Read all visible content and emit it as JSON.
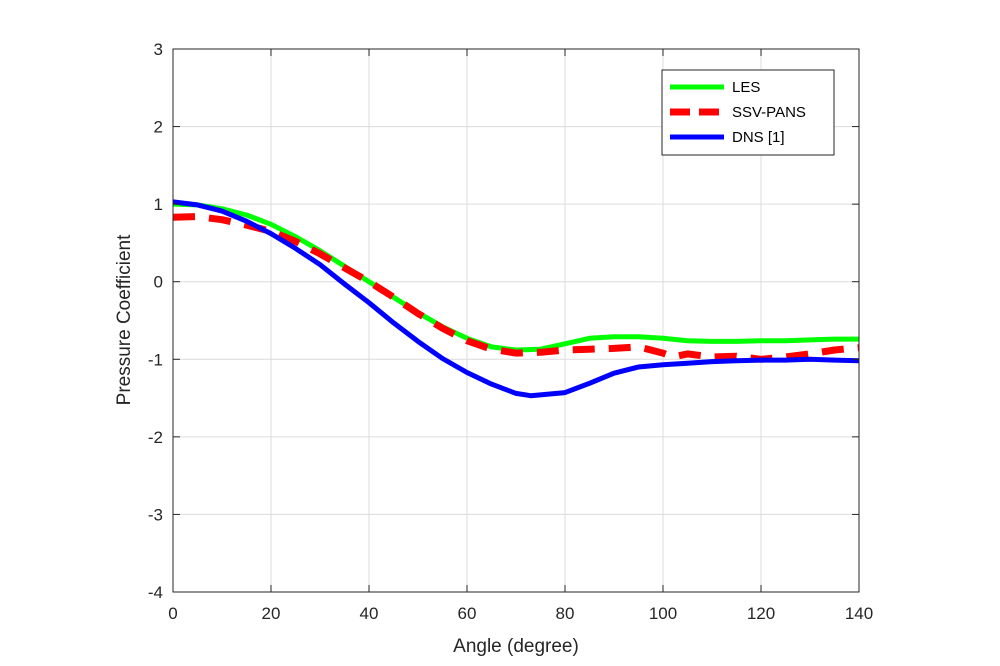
{
  "chart_data": {
    "type": "line",
    "title": "",
    "xlabel": "Angle (degree)",
    "ylabel": "Pressure Coefficient",
    "xlim": [
      0,
      140
    ],
    "ylim": [
      -4,
      3
    ],
    "xticks": [
      0,
      20,
      40,
      60,
      80,
      100,
      120,
      140
    ],
    "yticks": [
      -4,
      -3,
      -2,
      -1,
      0,
      1,
      2,
      3
    ],
    "grid": true,
    "legend_position": "top-right",
    "series": [
      {
        "name": "LES",
        "color": "#00ff00",
        "style": "solid",
        "x": [
          0,
          5,
          10,
          15,
          20,
          25,
          30,
          35,
          40,
          45,
          50,
          55,
          60,
          65,
          70,
          75,
          80,
          85,
          90,
          95,
          100,
          105,
          110,
          115,
          120,
          125,
          130,
          135,
          140
        ],
        "y": [
          1.0,
          0.99,
          0.94,
          0.86,
          0.74,
          0.58,
          0.4,
          0.2,
          0.0,
          -0.2,
          -0.4,
          -0.58,
          -0.73,
          -0.84,
          -0.88,
          -0.87,
          -0.8,
          -0.73,
          -0.71,
          -0.71,
          -0.73,
          -0.76,
          -0.77,
          -0.77,
          -0.76,
          -0.76,
          -0.75,
          -0.74,
          -0.74
        ]
      },
      {
        "name": "SSV-PANS",
        "color": "#ff0000",
        "style": "dashed",
        "x": [
          0,
          5,
          10,
          15,
          20,
          25,
          30,
          35,
          40,
          45,
          50,
          55,
          60,
          65,
          70,
          75,
          80,
          85,
          90,
          95,
          100,
          102,
          105,
          110,
          115,
          120,
          125,
          130,
          135,
          140
        ],
        "y": [
          0.83,
          0.84,
          0.8,
          0.73,
          0.65,
          0.52,
          0.36,
          0.18,
          0.0,
          -0.2,
          -0.41,
          -0.6,
          -0.76,
          -0.87,
          -0.92,
          -0.91,
          -0.88,
          -0.87,
          -0.86,
          -0.84,
          -0.92,
          -0.97,
          -0.93,
          -0.97,
          -0.96,
          -1.0,
          -0.97,
          -0.93,
          -0.88,
          -0.85
        ]
      },
      {
        "name": "DNS [1]",
        "color": "#0000ff",
        "style": "solid",
        "x": [
          0,
          5,
          10,
          15,
          20,
          25,
          30,
          35,
          40,
          45,
          50,
          55,
          60,
          65,
          70,
          73,
          80,
          85,
          90,
          95,
          100,
          105,
          110,
          115,
          120,
          125,
          130,
          135,
          140
        ],
        "y": [
          1.03,
          0.99,
          0.91,
          0.78,
          0.62,
          0.43,
          0.22,
          -0.03,
          -0.27,
          -0.53,
          -0.77,
          -0.99,
          -1.17,
          -1.32,
          -1.44,
          -1.47,
          -1.43,
          -1.31,
          -1.18,
          -1.1,
          -1.07,
          -1.05,
          -1.03,
          -1.02,
          -1.01,
          -1.01,
          -1.0,
          -1.01,
          -1.02
        ]
      }
    ]
  }
}
